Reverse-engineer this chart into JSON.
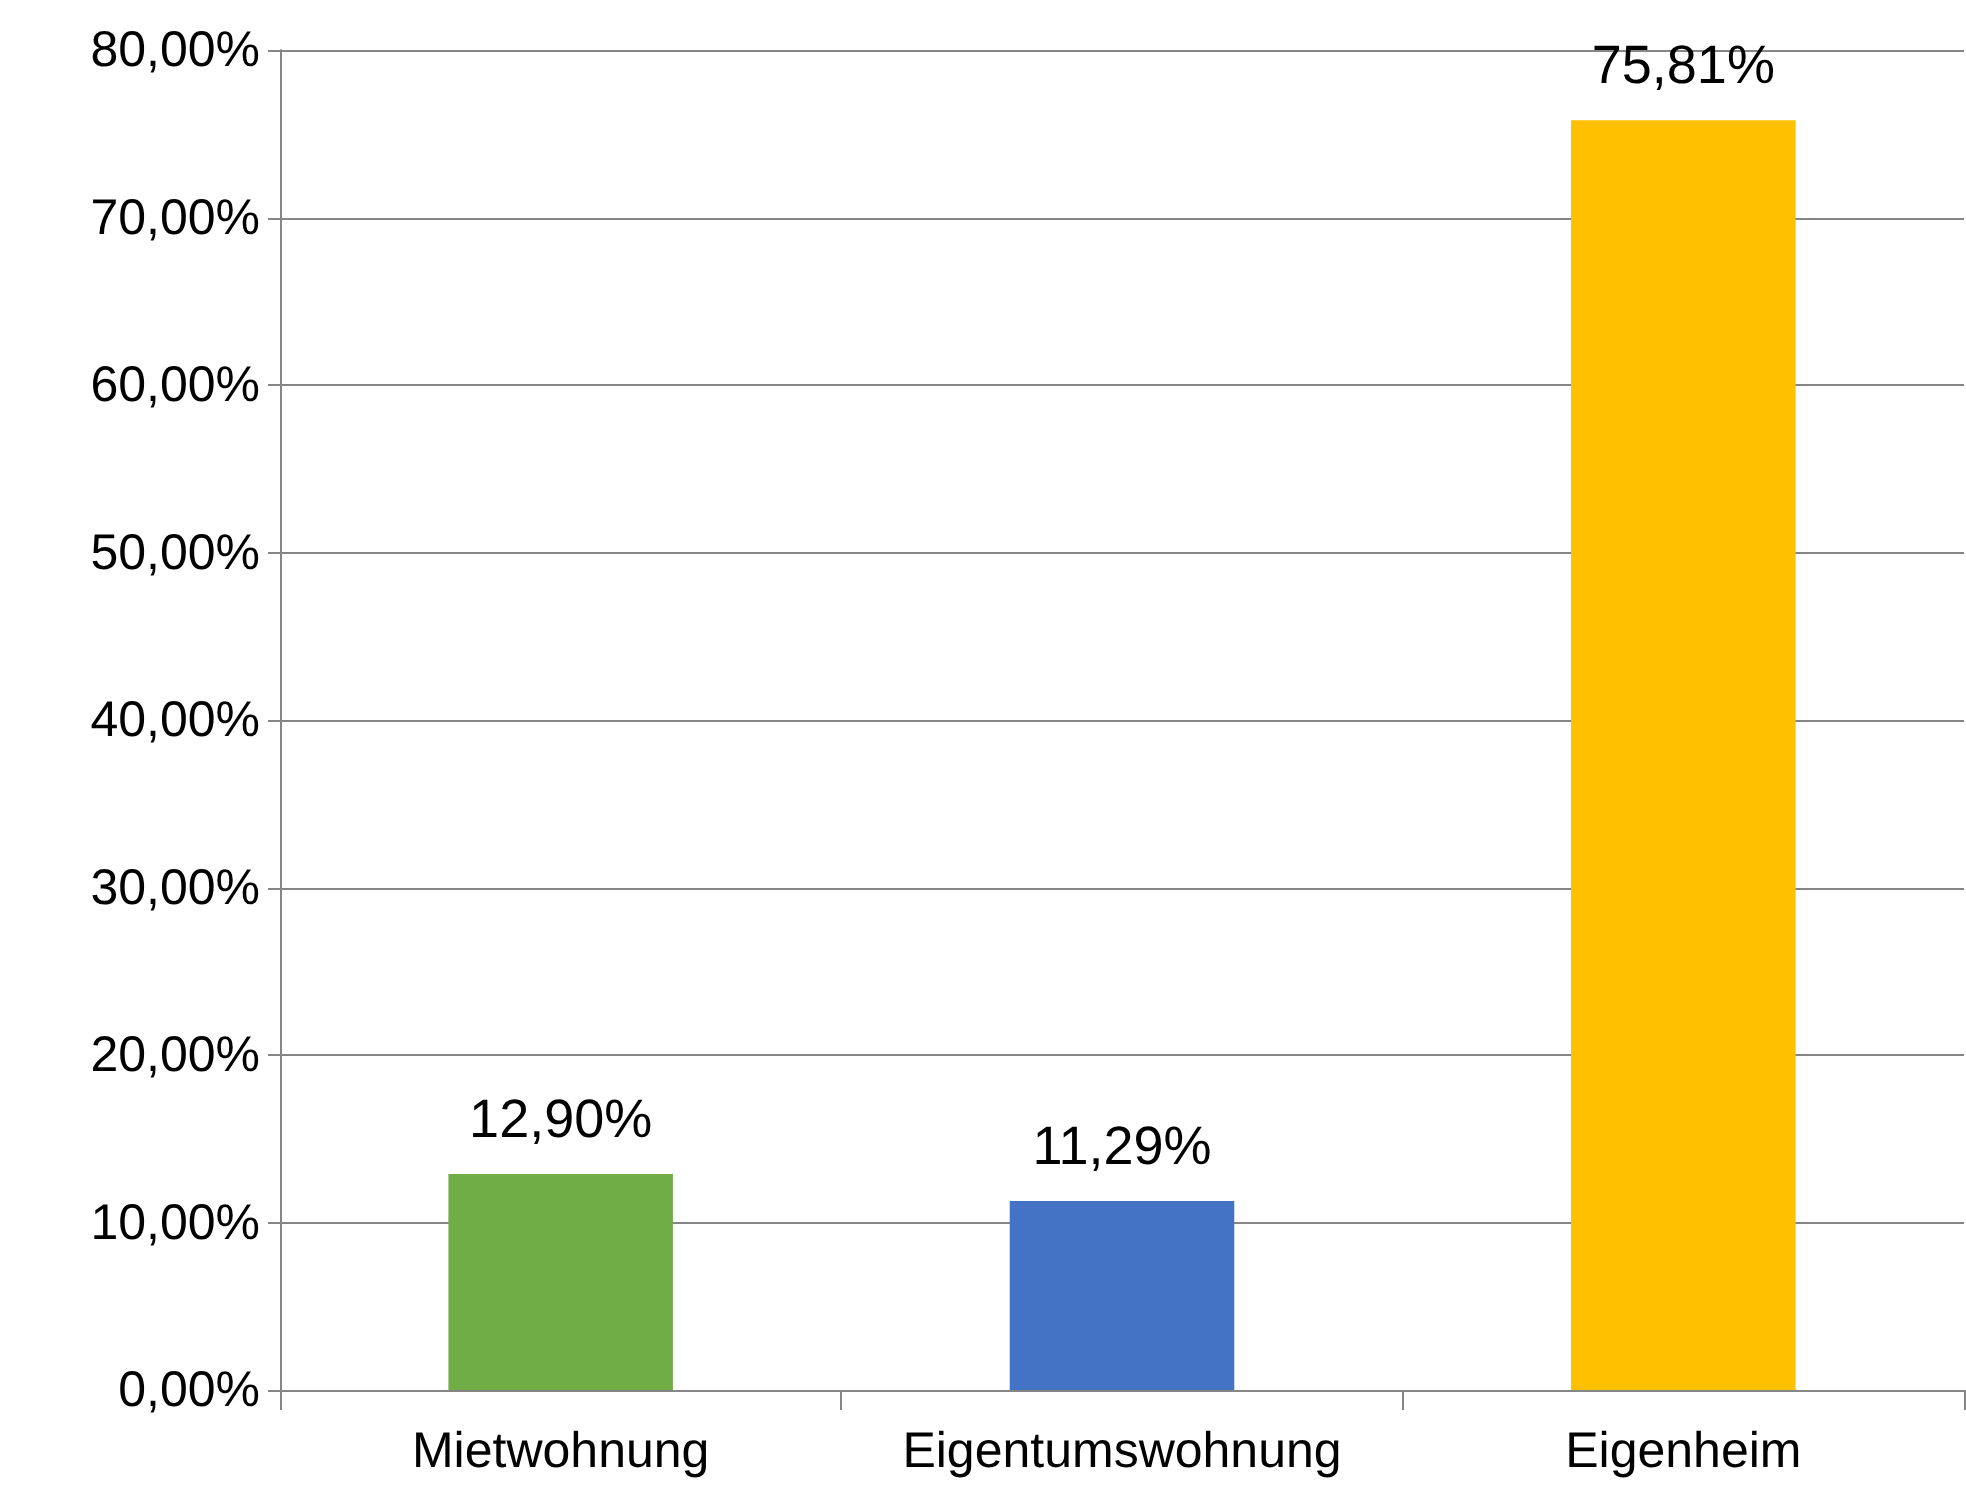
{
  "chart_data": {
    "type": "bar",
    "categories": [
      "Mietwohnung",
      "Eigentumswohnung",
      "Eigenheim"
    ],
    "values": [
      12.9,
      11.29,
      75.81
    ],
    "colors": [
      "#70ad47",
      "#4472c4",
      "#ffc000"
    ],
    "value_labels": [
      "12,90%",
      "11,29%",
      "75,81%"
    ],
    "ylim": [
      0,
      80
    ],
    "yticks": [
      {
        "value": 0,
        "label": "0,00%"
      },
      {
        "value": 10,
        "label": "10,00%"
      },
      {
        "value": 20,
        "label": "20,00%"
      },
      {
        "value": 30,
        "label": "30,00%"
      },
      {
        "value": 40,
        "label": "40,00%"
      },
      {
        "value": 50,
        "label": "50,00%"
      },
      {
        "value": 60,
        "label": "60,00%"
      },
      {
        "value": 70,
        "label": "70,00%"
      },
      {
        "value": 80,
        "label": "80,00%"
      }
    ],
    "grid": "y"
  }
}
